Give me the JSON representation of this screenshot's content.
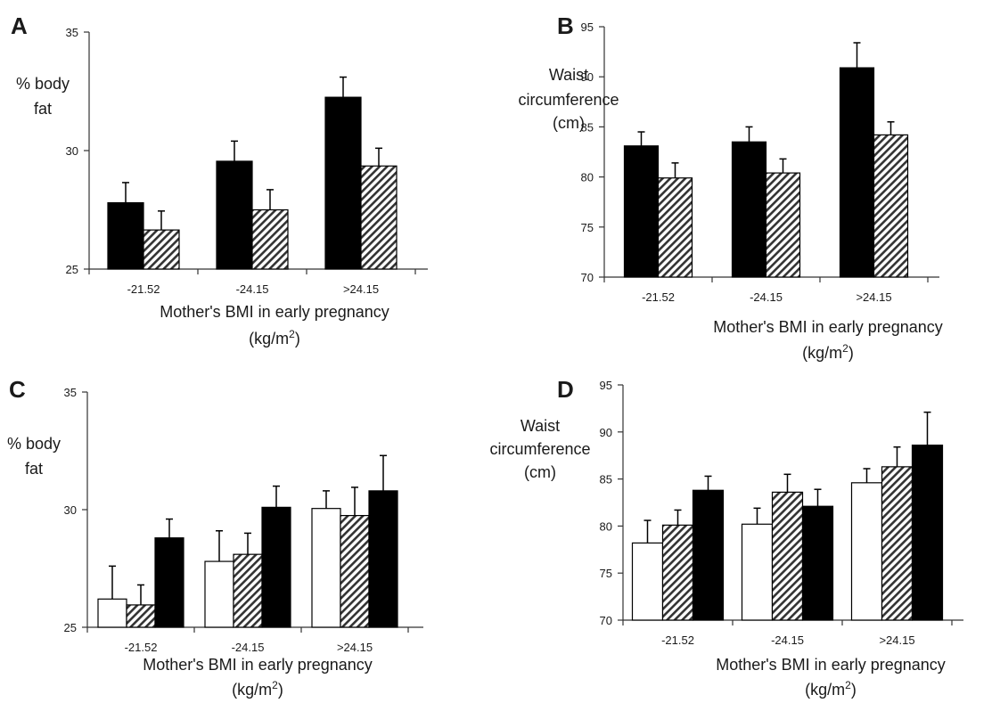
{
  "chart_data": [
    {
      "panel": "A",
      "type": "bar",
      "categories": [
        "-21.52",
        "-24.15",
        ">24.15"
      ],
      "series": [
        {
          "values": [
            27.8,
            29.55,
            32.25
          ],
          "errors": [
            0.85,
            0.85,
            0.85
          ],
          "fill": "solid"
        },
        {
          "values": [
            26.65,
            27.5,
            29.35
          ],
          "errors": [
            0.8,
            0.85,
            0.75
          ],
          "fill": "hatched"
        }
      ],
      "ylabel_lines": [
        "% body",
        "fat"
      ],
      "xlabel_lines": [
        "Mother's BMI in early pregnancy",
        "(kg/m",
        "2",
        ")"
      ],
      "ylim": [
        25,
        35
      ],
      "yticks": [
        25,
        30,
        35
      ]
    },
    {
      "panel": "B",
      "type": "bar",
      "categories": [
        "-21.52",
        "-24.15",
        ">24.15"
      ],
      "series": [
        {
          "values": [
            83.1,
            83.5,
            90.9
          ],
          "errors": [
            1.4,
            1.5,
            2.5
          ],
          "fill": "solid"
        },
        {
          "values": [
            79.9,
            80.4,
            84.2
          ],
          "errors": [
            1.5,
            1.4,
            1.3
          ],
          "fill": "hatched"
        }
      ],
      "ylabel_lines": [
        "Waist",
        "circumference",
        "(cm)"
      ],
      "xlabel_lines": [
        "Mother's BMI in early pregnancy",
        "(kg/m",
        "2",
        ")"
      ],
      "ylim": [
        70,
        95
      ],
      "yticks": [
        70,
        75,
        80,
        85,
        90,
        95
      ]
    },
    {
      "panel": "C",
      "type": "bar",
      "categories": [
        "-21.52",
        "-24.15",
        ">24.15"
      ],
      "series": [
        {
          "values": [
            26.2,
            27.8,
            30.05
          ],
          "errors": [
            1.4,
            1.3,
            0.75
          ],
          "fill": "white"
        },
        {
          "values": [
            25.95,
            28.1,
            29.75
          ],
          "errors": [
            0.85,
            0.9,
            1.2
          ],
          "fill": "hatched"
        },
        {
          "values": [
            28.8,
            30.1,
            30.8
          ],
          "errors": [
            0.8,
            0.9,
            1.5
          ],
          "fill": "solid"
        }
      ],
      "ylabel_lines": [
        "% body",
        "fat"
      ],
      "xlabel_lines": [
        "Mother's BMI in early pregnancy",
        "(kg/m",
        "2",
        ")"
      ],
      "ylim": [
        25,
        35
      ],
      "yticks": [
        25,
        30,
        35
      ]
    },
    {
      "panel": "D",
      "type": "bar",
      "categories": [
        "-21.52",
        "-24.15",
        ">24.15"
      ],
      "series": [
        {
          "values": [
            78.2,
            80.2,
            84.6
          ],
          "errors": [
            2.4,
            1.7,
            1.5
          ],
          "fill": "white"
        },
        {
          "values": [
            80.1,
            83.6,
            86.3
          ],
          "errors": [
            1.6,
            1.9,
            2.1
          ],
          "fill": "hatched"
        },
        {
          "values": [
            83.8,
            82.1,
            88.6
          ],
          "errors": [
            1.5,
            1.8,
            3.5
          ],
          "fill": "solid"
        }
      ],
      "ylabel_lines": [
        "Waist",
        "circumference",
        "(cm)"
      ],
      "xlabel_lines": [
        "Mother's BMI in early pregnancy",
        "(kg/m",
        "2",
        ")"
      ],
      "ylim": [
        70,
        95
      ],
      "yticks": [
        70,
        75,
        80,
        85,
        90,
        95
      ]
    }
  ],
  "colors": {
    "solid": "#000000",
    "white": "#ffffff",
    "hatch": "#333333",
    "hatch_bg": "#ffffff",
    "axis": "#333333"
  }
}
